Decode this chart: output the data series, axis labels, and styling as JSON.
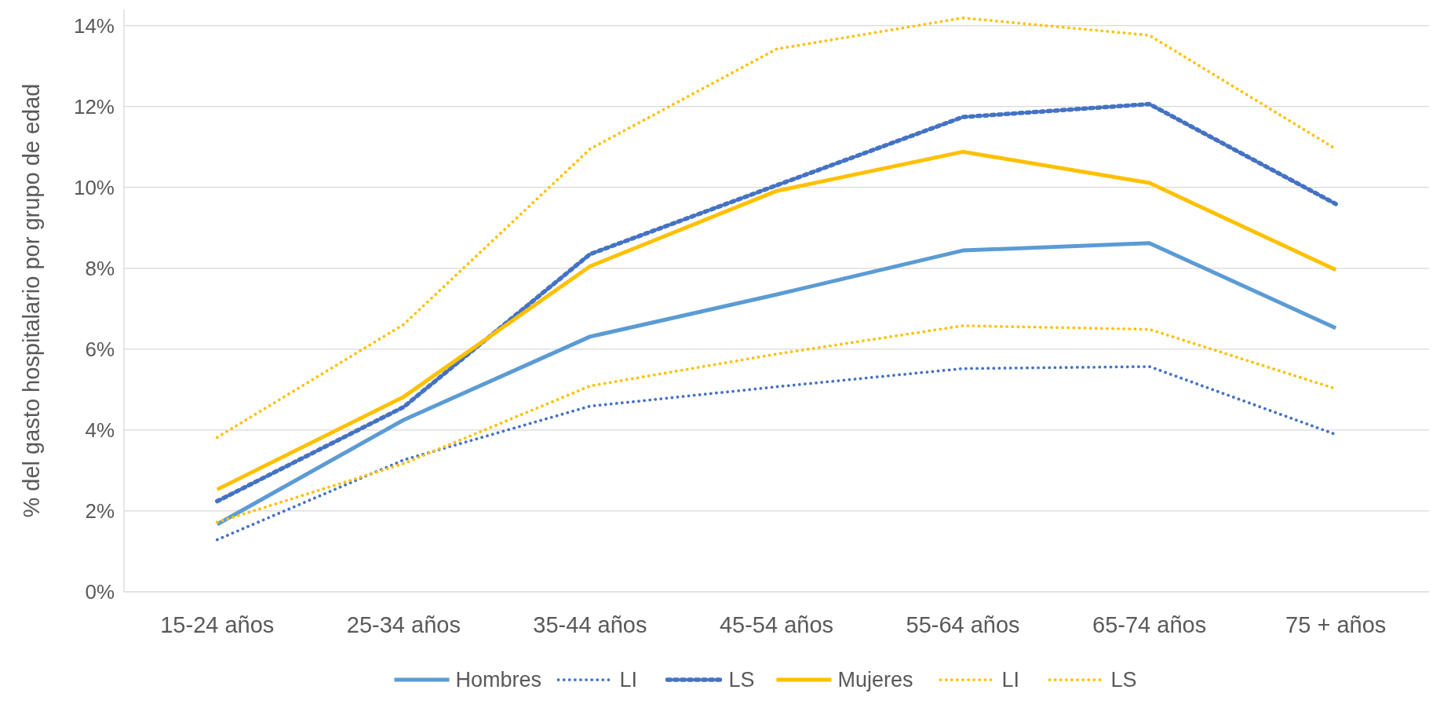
{
  "chart_data": {
    "type": "line",
    "ylabel": "% del gasto hospitalario por grupo de edad",
    "categories": [
      "15-24 años",
      "25-34 años",
      "35-44 años",
      "45-54 años",
      "55-64 años",
      "65-74 años",
      "75 + años"
    ],
    "series": [
      {
        "name": "Hombres",
        "color": "#5b9bd5",
        "line_style": "solid",
        "values": [
          1.67,
          4.25,
          6.31,
          7.35,
          8.44,
          8.62,
          6.52
        ]
      },
      {
        "name": "LI",
        "color": "#4472c4",
        "line_style": "dotted",
        "values": [
          1.29,
          3.26,
          4.59,
          5.07,
          5.52,
          5.57,
          3.89
        ]
      },
      {
        "name": "LS",
        "color": "#4472c4",
        "line_style": "dashed",
        "values": [
          2.24,
          4.57,
          8.35,
          10.05,
          11.74,
          12.06,
          9.59
        ]
      },
      {
        "name": "Mujeres",
        "color": "#ffc000",
        "line_style": "solid",
        "values": [
          2.53,
          4.82,
          8.05,
          9.91,
          10.88,
          10.11,
          7.96
        ]
      },
      {
        "name": "LI",
        "color": "#ffc000",
        "line_style": "dotted",
        "values": [
          1.72,
          3.17,
          5.09,
          5.88,
          6.58,
          6.49,
          5.02
        ]
      },
      {
        "name": "LS",
        "color": "#ffc000",
        "line_style": "dotted",
        "values": [
          3.82,
          6.61,
          10.95,
          13.42,
          14.19,
          13.76,
          10.95
        ]
      }
    ],
    "ylim": [
      0,
      14.4
    ],
    "yticks": [
      {
        "value": 0,
        "label": "0%"
      },
      {
        "value": 2,
        "label": "2%"
      },
      {
        "value": 4,
        "label": "4%"
      },
      {
        "value": 6,
        "label": "6%"
      },
      {
        "value": 8,
        "label": "8%"
      },
      {
        "value": 10,
        "label": "10%"
      },
      {
        "value": 12,
        "label": "12%"
      },
      {
        "value": 14,
        "label": "14%"
      }
    ],
    "grid": "y",
    "legend": "bottom"
  }
}
